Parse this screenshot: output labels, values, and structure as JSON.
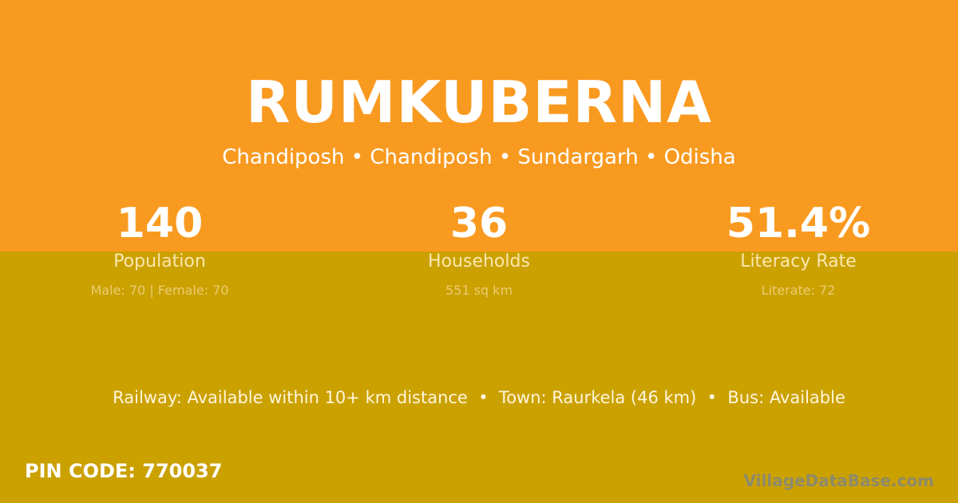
{
  "village": {
    "name": "RUMKUBERNA",
    "breadcrumb": "Chandiposh • Chandiposh • Sundargarh • Odisha"
  },
  "stats": [
    {
      "value": "140",
      "label": "Population",
      "detail": "Male: 70 | Female: 70"
    },
    {
      "value": "36",
      "label": "Households",
      "detail": "551 sq km"
    },
    {
      "value": "51.4%",
      "label": "Literacy Rate",
      "detail": "Literate: 72"
    }
  ],
  "connectivity": "Railway: Available within 10+ km distance  •  Town: Raurkela (46 km)  •  Bus: Available",
  "pin": "PIN CODE: 770037",
  "brand": "VillageDataBase.com",
  "colors": {
    "top": "#F99A20",
    "bottom": "#CBA100"
  }
}
